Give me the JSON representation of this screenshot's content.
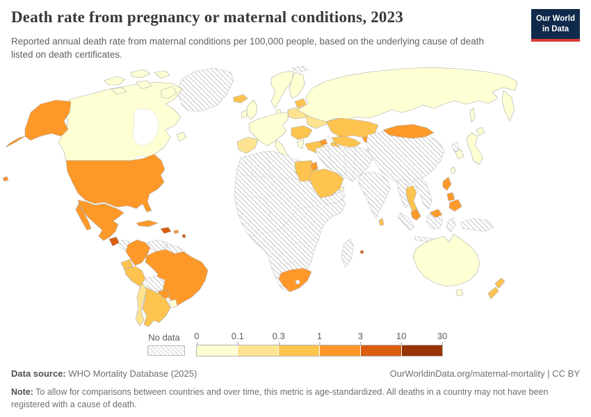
{
  "header": {
    "title": "Death rate from pregnancy or maternal conditions, 2023",
    "subtitle": "Reported annual death rate from maternal conditions per 100,000 people, based on the underlying cause of death listed on death certificates."
  },
  "logo": {
    "line1": "Our World",
    "line2": "in Data",
    "bg_color": "#102a4c",
    "accent_color": "#dc3c35"
  },
  "legend": {
    "no_data_label": "No data",
    "tick_labels": [
      "0",
      "0.1",
      "0.3",
      "1",
      "3",
      "10",
      "30"
    ],
    "bucket_colors": [
      "#ffffd4",
      "#fee391",
      "#fec44f",
      "#fe9929",
      "#d95f0e",
      "#993404"
    ]
  },
  "footer": {
    "data_source_label": "Data source:",
    "data_source": "WHO Mortality Database (2025)",
    "attribution": "OurWorldinData.org/maternal-mortality | CC BY",
    "note_label": "Note:",
    "note": "To allow for comparisons between countries and over time, this metric is age-standardized. All deaths in a country may not have been registered with a cause of death."
  },
  "map": {
    "ocean_color": "#ffffff",
    "land_border_color": "#a9a9a9",
    "no_data_border_color": "#c3c3c3",
    "no_data_hatch_color": "#cfcfcf",
    "regions": {
      "greenland": "no-data",
      "svalbard": "no-data",
      "canada": 0,
      "alaska": 3,
      "usa": 3,
      "mexico": 3,
      "guatemala": 4,
      "honduras-nicaragua": "no-data",
      "costa-rica-panama": 3,
      "cuba": 3,
      "hispaniola": 4,
      "puerto-rico": 3,
      "lesser-antilles": 4,
      "hawaii": 3,
      "colombia": 3,
      "venezuela": "no-data",
      "guyanas": "no-data",
      "ecuador": 2,
      "peru": 2,
      "brazil": 3,
      "bolivia": "no-data",
      "paraguay": 3,
      "uruguay": 0,
      "argentina": 2,
      "chile": 1,
      "iceland": 2,
      "uk": 0,
      "ireland": 0,
      "scandinavia": 0,
      "finland": 0,
      "denmark": 0,
      "europe-mainland": 0,
      "iberia": 1,
      "italy": 0,
      "poland-belarus": 1,
      "baltics": 2,
      "ukraine": 1,
      "balkans": 2,
      "greece": 0,
      "turkey": 2,
      "africa": "no-data",
      "egypt": 2,
      "south-africa": 3,
      "lesotho": "no-data",
      "madagascar": "no-data",
      "mauritius": 4,
      "russia": 0,
      "kazakhstan": 2,
      "central-asia": 2,
      "kyrgyzstan": 3,
      "azerbaijan": 3,
      "middle-east": "no-data",
      "levant": 3,
      "saudi-arabia": 2,
      "yemen-oman": "no-data",
      "uae": 0,
      "china": "no-data",
      "mongolia": 3,
      "india": "no-data",
      "sri-lanka": 2,
      "myanmar": "no-data",
      "thailand": 2,
      "indochina": "no-data",
      "malaysia": 3,
      "malaysia-borneo": 3,
      "sumatra": "no-data",
      "java": "no-data",
      "borneo": "no-data",
      "sulawesi": "no-data",
      "new-guinea": "no-data",
      "philippines": 3,
      "taiwan": 0,
      "north-korea": "no-data",
      "south-korea": 0,
      "japan": 0,
      "australia": 0,
      "tasmania": 0,
      "new-zealand": 2
    }
  }
}
